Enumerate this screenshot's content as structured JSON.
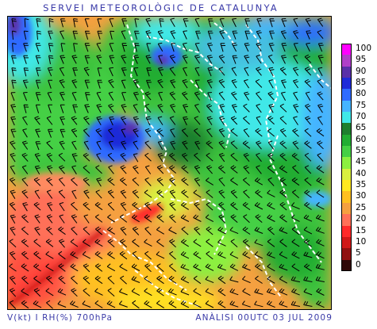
{
  "header": {
    "title": "SERVEI METEOROLÒGIC DE CATALUNYA"
  },
  "footer": {
    "left_label": "V(kt) I RH(%) 700hPa",
    "right_label": "ANÀLISI 00UTC 03 JUL 2009"
  },
  "legend": {
    "items": [
      {
        "label": "100",
        "color": "#ff00ff"
      },
      {
        "label": "95",
        "color": "#b040c8"
      },
      {
        "label": "90",
        "color": "#5a30a8"
      },
      {
        "label": "85",
        "color": "#1f2ad8"
      },
      {
        "label": "80",
        "color": "#2f6bff"
      },
      {
        "label": "75",
        "color": "#45b4ff"
      },
      {
        "label": "70",
        "color": "#40e8e8"
      },
      {
        "label": "65",
        "color": "#1e7f2e"
      },
      {
        "label": "60",
        "color": "#22ad33"
      },
      {
        "label": "55",
        "color": "#45d045"
      },
      {
        "label": "45",
        "color": "#8cf040"
      },
      {
        "label": "40",
        "color": "#d8f040"
      },
      {
        "label": "35",
        "color": "#ffe820"
      },
      {
        "label": "30",
        "color": "#ffc020"
      },
      {
        "label": "25",
        "color": "#f5a040"
      },
      {
        "label": "20",
        "color": "#ff7058"
      },
      {
        "label": "15",
        "color": "#ff2a2a"
      },
      {
        "label": "10",
        "color": "#d01818"
      },
      {
        "label": "5",
        "color": "#901010"
      },
      {
        "label": "0",
        "color": "#300808"
      }
    ]
  }
}
